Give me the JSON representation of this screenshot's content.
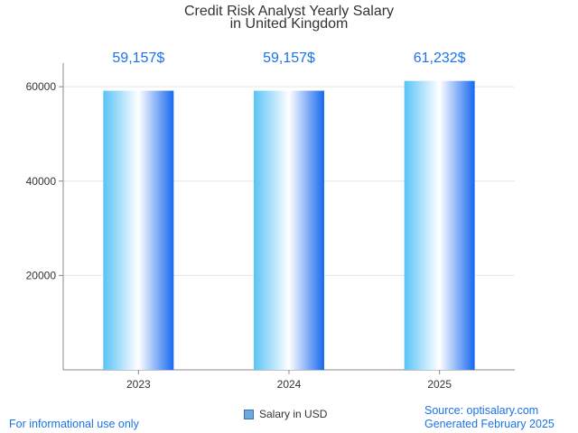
{
  "title_line1": "Credit Risk Analyst Yearly Salary",
  "title_line2": "in United Kingdom",
  "footer": {
    "disclaimer": "For informational use only",
    "source": "Source: optisalary.com",
    "generated": "Generated February 2025"
  },
  "colors": {
    "bar_light": "#dff3ff",
    "bar_mid": "#59c3f5",
    "bar_dark": "#1769f0",
    "value_label": "#1a73e8",
    "grid": "#e6e6e6",
    "axis": "#888888"
  },
  "chart_data": {
    "type": "bar",
    "categories": [
      "2023",
      "2024",
      "2025"
    ],
    "series": [
      {
        "name": "Salary in USD",
        "values": [
          59157,
          59157,
          61232
        ]
      }
    ],
    "data_labels": [
      "59,157$",
      "59,157$",
      "61,232$"
    ],
    "yticks": [
      20000,
      40000,
      60000
    ],
    "ylim": [
      0,
      65000
    ],
    "grid": true,
    "legend": "bottom-center"
  }
}
